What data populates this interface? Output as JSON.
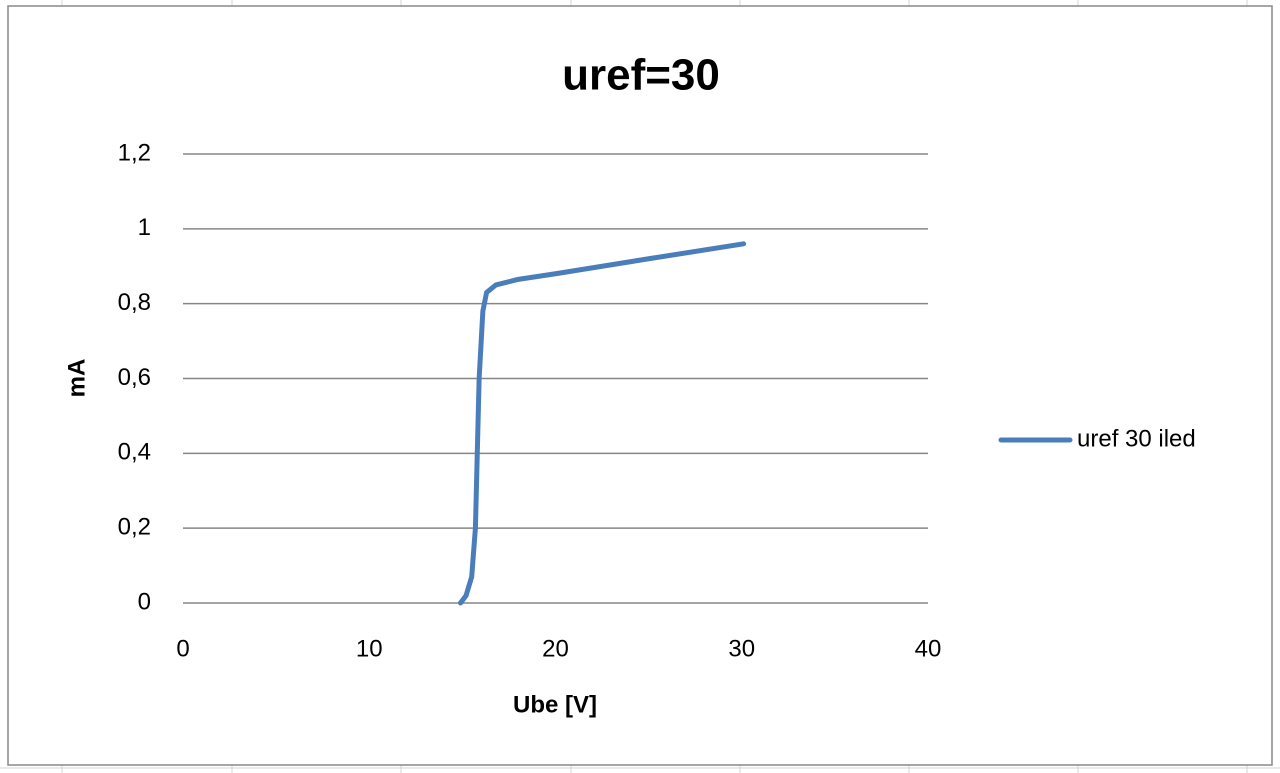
{
  "chart_data": {
    "type": "line",
    "title": "uref=30",
    "x_label": "Ube [V]",
    "y_label": "mA",
    "legend": "right",
    "grid": true,
    "series": [
      {
        "name": "uref 30 iled",
        "color": "#4a7ebb",
        "x": [
          14.9,
          15.2,
          15.5,
          15.7,
          15.9,
          16.1,
          16.3,
          16.8,
          18,
          20,
          25,
          30.1
        ],
        "values": [
          0,
          0.02,
          0.07,
          0.2,
          0.6,
          0.78,
          0.83,
          0.85,
          0.865,
          0.88,
          0.92,
          0.96
        ]
      }
    ],
    "xlim": [
      0,
      40
    ],
    "xticks": [
      0,
      10,
      20,
      30,
      40
    ],
    "ylim": [
      0,
      1.2
    ],
    "yticks": [
      0,
      {
        "value": 0.2,
        "label": "0,2"
      },
      {
        "value": 0.4,
        "label": "0,4"
      },
      {
        "value": 0.6,
        "label": "0,6"
      },
      {
        "value": 0.8,
        "label": "0,8"
      },
      1,
      {
        "value": 1.2,
        "label": "1,2"
      }
    ]
  }
}
